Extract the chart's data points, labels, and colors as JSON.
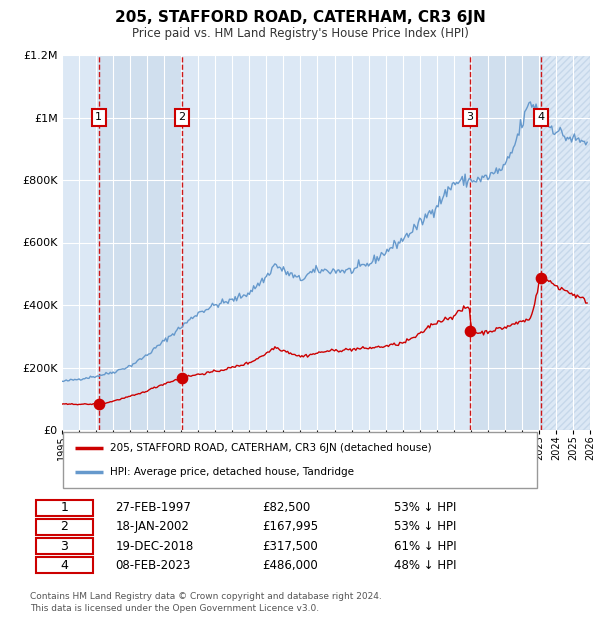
{
  "title": "205, STAFFORD ROAD, CATERHAM, CR3 6JN",
  "subtitle": "Price paid vs. HM Land Registry's House Price Index (HPI)",
  "transactions": [
    {
      "num": 1,
      "date": "1997-02-27",
      "price": 82500,
      "pct": "53%",
      "direction": "↓"
    },
    {
      "num": 2,
      "date": "2002-01-18",
      "price": 167995,
      "pct": "53%",
      "direction": "↓"
    },
    {
      "num": 3,
      "date": "2018-12-19",
      "price": 317500,
      "pct": "61%",
      "direction": "↓"
    },
    {
      "num": 4,
      "date": "2023-02-08",
      "price": 486000,
      "pct": "48%",
      "direction": "↓"
    }
  ],
  "legend_label_red": "205, STAFFORD ROAD, CATERHAM, CR3 6JN (detached house)",
  "legend_label_blue": "HPI: Average price, detached house, Tandridge",
  "footer_line1": "Contains HM Land Registry data © Crown copyright and database right 2024.",
  "footer_line2": "This data is licensed under the Open Government Licence v3.0.",
  "xmin": 1995,
  "xmax": 2026,
  "ymin": 0,
  "ymax": 1200000,
  "yticks": [
    0,
    200000,
    400000,
    600000,
    800000,
    1000000,
    1200000
  ],
  "ytick_labels": [
    "£0",
    "£200K",
    "£400K",
    "£600K",
    "£800K",
    "£1M",
    "£1.2M"
  ],
  "red_color": "#cc0000",
  "blue_color": "#6699cc",
  "bg_chart": "#dce8f5",
  "col_shade": "#e8f1fa",
  "grid_color": "#ffffff",
  "dashed_color": "#cc0000",
  "box_color": "#cc0000",
  "hpi_anchors": [
    [
      1995.0,
      155000
    ],
    [
      1996.0,
      163000
    ],
    [
      1997.0,
      172000
    ],
    [
      1998.0,
      185000
    ],
    [
      1999.0,
      205000
    ],
    [
      2000.0,
      240000
    ],
    [
      2001.0,
      285000
    ],
    [
      2002.0,
      330000
    ],
    [
      2003.0,
      375000
    ],
    [
      2004.0,
      400000
    ],
    [
      2005.0,
      415000
    ],
    [
      2006.0,
      440000
    ],
    [
      2007.0,
      490000
    ],
    [
      2007.5,
      530000
    ],
    [
      2008.0,
      510000
    ],
    [
      2009.0,
      480000
    ],
    [
      2009.5,
      500000
    ],
    [
      2010.0,
      510000
    ],
    [
      2011.0,
      510000
    ],
    [
      2012.0,
      510000
    ],
    [
      2013.0,
      530000
    ],
    [
      2014.0,
      570000
    ],
    [
      2015.0,
      610000
    ],
    [
      2016.0,
      660000
    ],
    [
      2017.0,
      720000
    ],
    [
      2018.0,
      790000
    ],
    [
      2019.0,
      800000
    ],
    [
      2019.5,
      800000
    ],
    [
      2020.0,
      810000
    ],
    [
      2021.0,
      840000
    ],
    [
      2021.5,
      900000
    ],
    [
      2022.0,
      980000
    ],
    [
      2022.5,
      1050000
    ],
    [
      2023.0,
      1020000
    ],
    [
      2023.5,
      980000
    ],
    [
      2024.0,
      960000
    ],
    [
      2024.5,
      940000
    ],
    [
      2025.0,
      930000
    ],
    [
      2025.9,
      920000
    ]
  ],
  "red_anchors": [
    [
      1995.0,
      82500
    ],
    [
      1996.5,
      82500
    ],
    [
      1997.2,
      82500
    ],
    [
      1997.5,
      85000
    ],
    [
      1998.5,
      100000
    ],
    [
      1999.5,
      115000
    ],
    [
      2001.0,
      148000
    ],
    [
      2002.1,
      167995
    ],
    [
      2003.0,
      178000
    ],
    [
      2004.0,
      187000
    ],
    [
      2005.0,
      200000
    ],
    [
      2006.0,
      215000
    ],
    [
      2007.0,
      245000
    ],
    [
      2007.5,
      265000
    ],
    [
      2008.0,
      255000
    ],
    [
      2009.0,
      235000
    ],
    [
      2009.5,
      240000
    ],
    [
      2010.5,
      252000
    ],
    [
      2012.0,
      258000
    ],
    [
      2013.0,
      262000
    ],
    [
      2014.0,
      268000
    ],
    [
      2015.0,
      278000
    ],
    [
      2016.0,
      305000
    ],
    [
      2016.5,
      330000
    ],
    [
      2017.0,
      345000
    ],
    [
      2018.0,
      365000
    ],
    [
      2018.5,
      385000
    ],
    [
      2018.9,
      395000
    ],
    [
      2019.05,
      317500
    ],
    [
      2019.5,
      310000
    ],
    [
      2020.0,
      315000
    ],
    [
      2021.0,
      328000
    ],
    [
      2022.0,
      348000
    ],
    [
      2022.5,
      355000
    ],
    [
      2023.1,
      486000
    ],
    [
      2023.5,
      478000
    ],
    [
      2024.0,
      462000
    ],
    [
      2024.5,
      448000
    ],
    [
      2025.0,
      435000
    ],
    [
      2025.5,
      420000
    ],
    [
      2025.9,
      410000
    ]
  ],
  "trans_dates": [
    1997.158,
    2002.047,
    2018.964,
    2023.103
  ],
  "trans_prices": [
    82500,
    167995,
    317500,
    486000
  ],
  "trans_labels": [
    "1",
    "2",
    "3",
    "4"
  ],
  "table_rows": [
    [
      "1",
      "27-FEB-1997",
      "£82,500",
      "53% ↓ HPI"
    ],
    [
      "2",
      "18-JAN-2002",
      "£167,995",
      "53% ↓ HPI"
    ],
    [
      "3",
      "19-DEC-2018",
      "£317,500",
      "61% ↓ HPI"
    ],
    [
      "4",
      "08-FEB-2023",
      "£486,000",
      "48% ↓ HPI"
    ]
  ]
}
